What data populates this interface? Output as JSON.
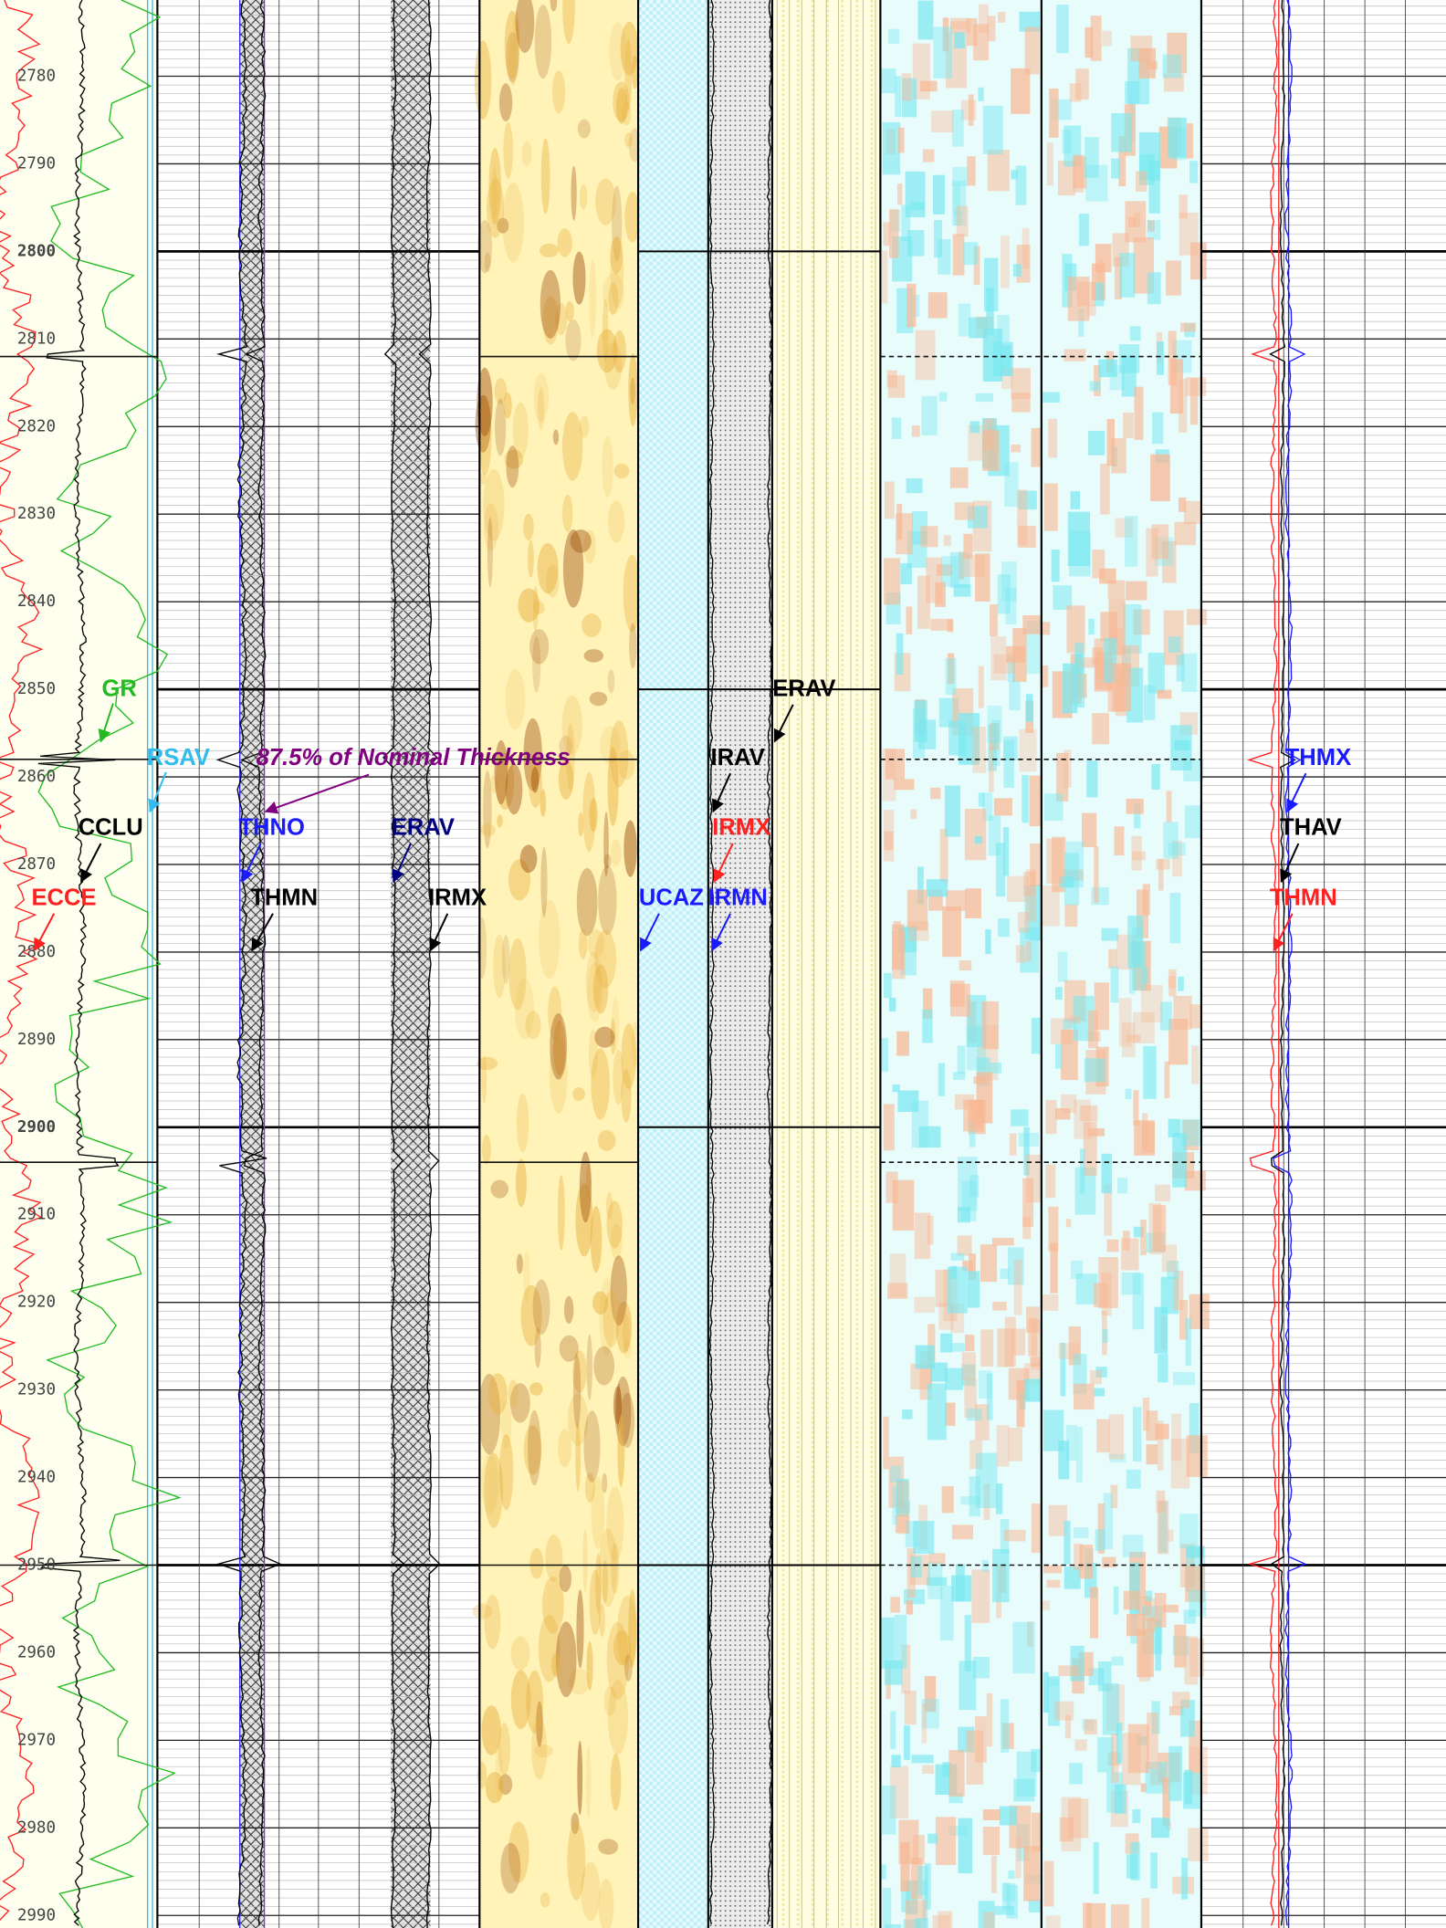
{
  "depth_track": {
    "labels": [
      2780,
      2790,
      2800,
      2810,
      2820,
      2830,
      2840,
      2850,
      2860,
      2870,
      2880,
      2890,
      2900,
      2910,
      2920,
      2930,
      2940,
      2950,
      2960,
      2970,
      2980,
      2990
    ]
  },
  "curve_labels": [
    {
      "text": "GR",
      "color": "#22bb22"
    },
    {
      "text": "RSAV",
      "color": "#33bbee"
    },
    {
      "text": "CCLU",
      "color": "#000000"
    },
    {
      "text": "ECCE",
      "color": "#ff2020"
    },
    {
      "text": "87.5% of Nominal Thickness",
      "color": "#800080"
    },
    {
      "text": "THNO",
      "color": "#1a1aff"
    },
    {
      "text": "THMN",
      "color": "#000000"
    },
    {
      "text": "ERAV",
      "color": "#000080"
    },
    {
      "text": "IRMX",
      "color": "#000000"
    },
    {
      "text": "UCAZ",
      "color": "#1a1aff"
    },
    {
      "text": "IRAV",
      "color": "#000000"
    },
    {
      "text": "IRMX",
      "color": "#ff2020"
    },
    {
      "text": "IRMN",
      "color": "#1a1aff"
    },
    {
      "text": "ERAV",
      "color": "#000000"
    },
    {
      "text": "THMX",
      "color": "#1a1aff"
    },
    {
      "text": "THAV",
      "color": "#000000"
    },
    {
      "text": "THMN",
      "color": "#ff2020"
    }
  ]
}
